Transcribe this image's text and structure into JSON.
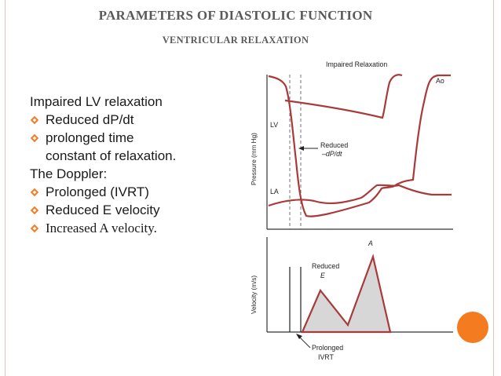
{
  "slide": {
    "title": "PARAMETERS OF DIASTOLIC FUNCTION",
    "subtitle": "VENTRICULAR RELAXATION",
    "accent_color": "#f47b20",
    "bullet_icon": "hollow-diamond-bullet",
    "lines": {
      "intro": "Impaired LV relaxation",
      "b1": "Reduced dP/dt",
      "b2_a": "prolonged time",
      "b2_b": "constant of relaxation.",
      "doppler": "The Doppler:",
      "b3": "Prolonged (IVRT)",
      "b4": "Reduced E velocity",
      "b5": "Increased A velocity."
    }
  },
  "figure": {
    "top_title": "Impaired Relaxation",
    "ao": "Ao",
    "lv": "LV",
    "la": "LA",
    "reduced_line1": "Reduced",
    "reduced_line2": "–dP/dt",
    "pressure_axis": "Pressure (mm Hg)",
    "velocity_axis": "Velocity (m/s)",
    "a_label": "A",
    "reduced_e_line1": "Reduced",
    "reduced_e_line2": "E",
    "prolonged_line1": "Prolonged",
    "prolonged_line2": "IVRT",
    "curve_color": "#a83a3a"
  }
}
